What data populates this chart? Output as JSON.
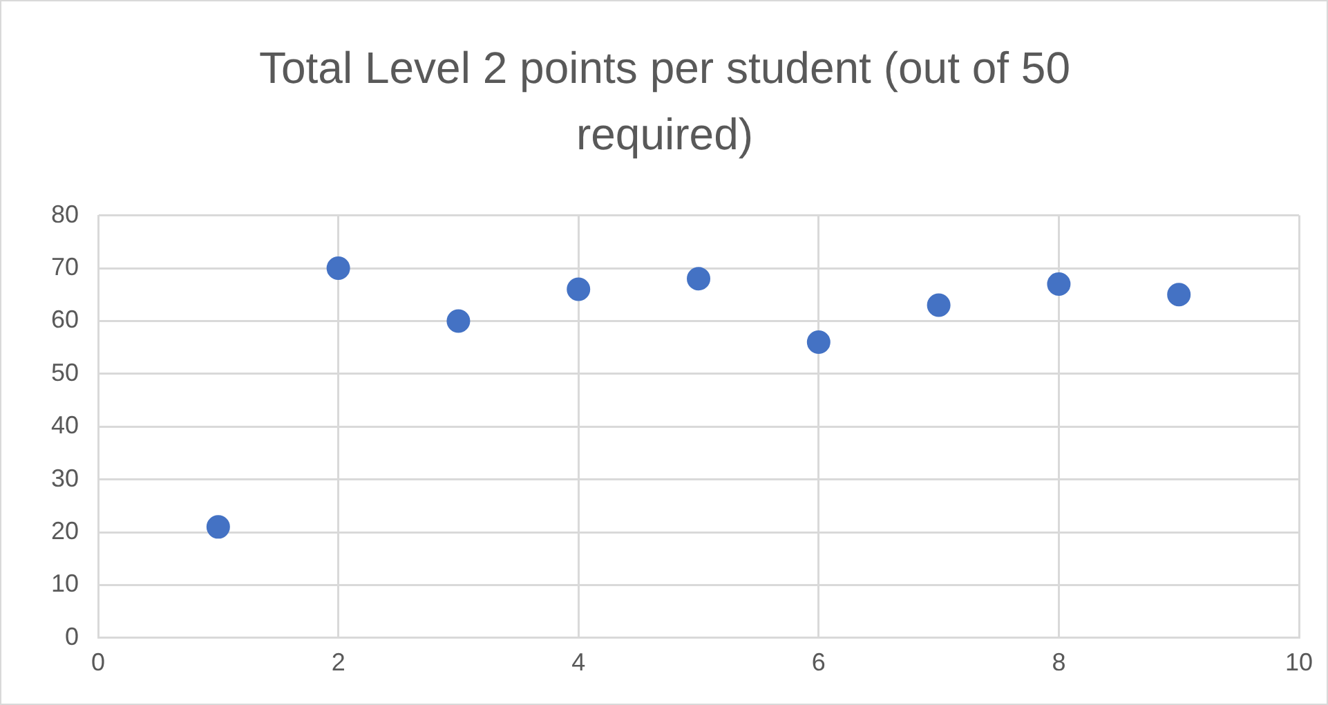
{
  "chart_data": {
    "type": "scatter",
    "title": "Total Level 2 points per student (out of 50 required)",
    "x": [
      1,
      2,
      3,
      4,
      5,
      6,
      7,
      8,
      9
    ],
    "series": [
      {
        "color": "#4472c4",
        "values": [
          21,
          70,
          60,
          66,
          68,
          56,
          63,
          67,
          65
        ]
      }
    ],
    "xlim": [
      0,
      10
    ],
    "xticks": [
      0,
      2,
      4,
      6,
      8,
      10
    ],
    "ylim": [
      0,
      80
    ],
    "yticks": [
      0,
      10,
      20,
      30,
      40,
      50,
      60,
      70,
      80
    ],
    "grid": true,
    "marker": "circle",
    "legend": false
  }
}
